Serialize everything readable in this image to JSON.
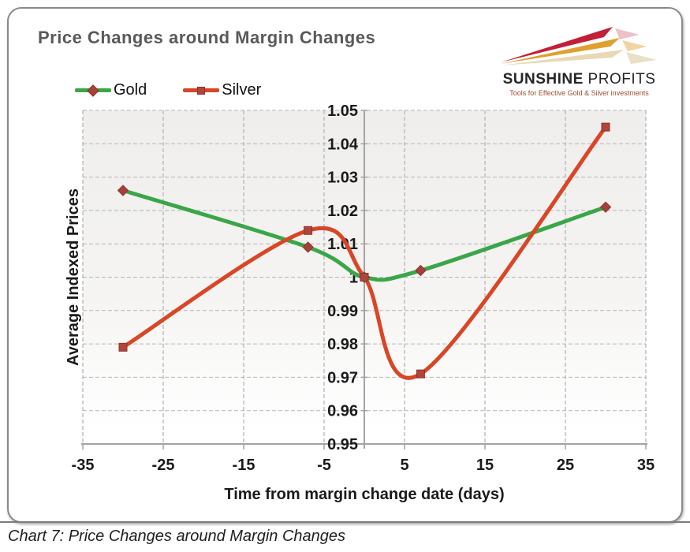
{
  "caption": "Chart 7: Price Changes around Margin Changes",
  "logo": {
    "name_bold": "SUNSHINE",
    "name_light": " PROFITS",
    "tagline": "Tools for Effective Gold & Silver investments",
    "arrow_colors": [
      "#c31f38",
      "#dfa02f",
      "#e7d9b4"
    ]
  },
  "colors": {
    "gold_line": "#3AA648",
    "silver_line": "#D94626",
    "marker": "#A5403A",
    "marker_square": "#B0453C",
    "marker_edge": "#8F322C",
    "grid": "#b5b5b5",
    "axis": "#a3a3a3",
    "title": "#595959",
    "tick_text": "#1a1a1a"
  },
  "chart_data": {
    "type": "line",
    "title": "Price Changes around Margin Changes",
    "xlabel": "Time from margin change date (days)",
    "ylabel": "Average Indexed Prices",
    "xlim": [
      -35,
      35
    ],
    "ylim": [
      0.95,
      1.05
    ],
    "x_ticks": [
      -35,
      -25,
      -15,
      -5,
      5,
      15,
      25,
      35
    ],
    "y_ticks": [
      "1.05",
      "1.04",
      "1.03",
      "1.02",
      "1.01",
      "1",
      "0.99",
      "0.98",
      "0.97",
      "0.96",
      "0.95"
    ],
    "grid": "dashed, value axis crosses at x=0",
    "legend_position": "top-left",
    "smooth": true,
    "series": [
      {
        "name": "Gold",
        "color": "#3AA648",
        "marker": "diamond",
        "x": [
          -30,
          -7,
          0,
          7,
          30
        ],
        "values": [
          1.026,
          1.009,
          1.0,
          1.002,
          1.021
        ]
      },
      {
        "name": "Silver",
        "color": "#D94626",
        "marker": "square",
        "x": [
          -30,
          -7,
          0,
          7,
          30
        ],
        "values": [
          0.979,
          1.014,
          1.0,
          0.971,
          1.045
        ]
      }
    ]
  }
}
